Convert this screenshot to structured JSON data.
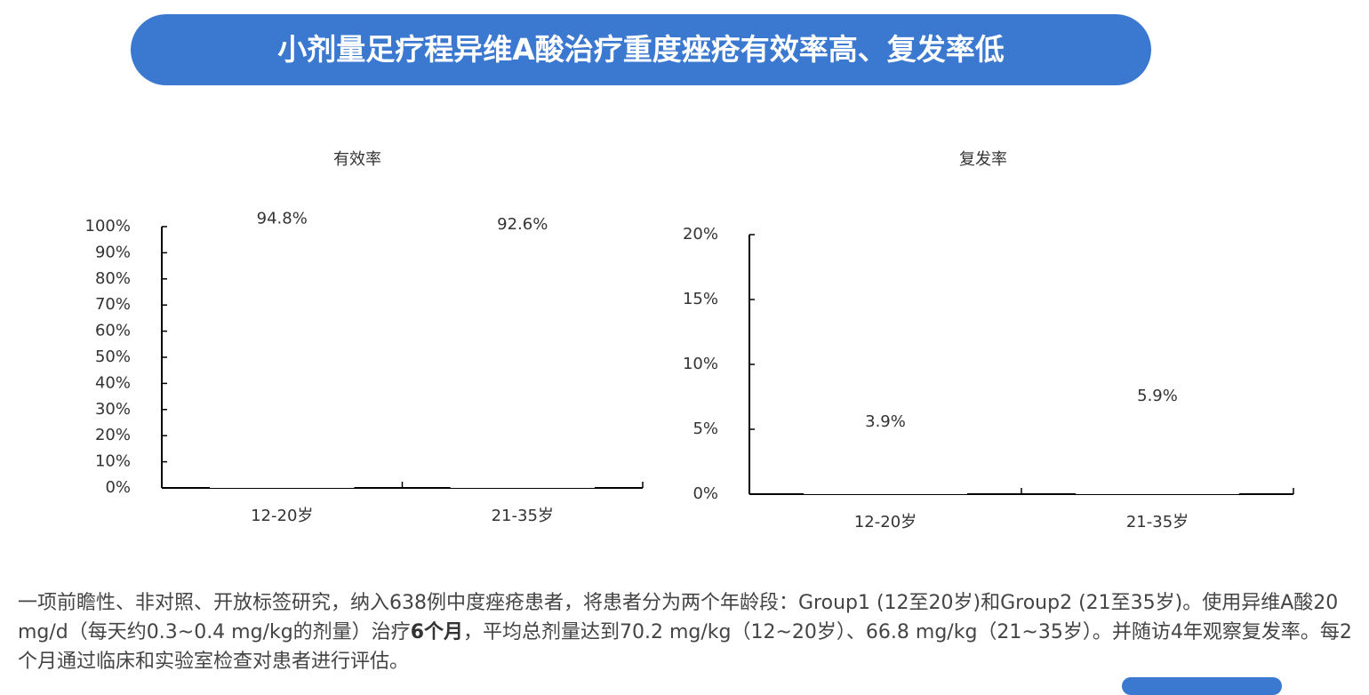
{
  "header": {
    "title": "小剂量足疗程异维A酸治疗重度痤疮有效率高、复发率低"
  },
  "chart_data": [
    {
      "type": "bar",
      "title": "有效率",
      "categories": [
        "12-20岁",
        "21-35岁"
      ],
      "values": [
        94.8,
        92.6
      ],
      "value_labels": [
        "94.8%",
        "92.6%"
      ],
      "color": "#ffffff",
      "ylim": [
        0,
        100
      ],
      "yticks": [
        {
          "value": 0,
          "label": "0%"
        },
        {
          "value": 10,
          "label": "10%"
        },
        {
          "value": 20,
          "label": "20%"
        },
        {
          "value": 30,
          "label": "30%"
        },
        {
          "value": 40,
          "label": "40%"
        },
        {
          "value": 50,
          "label": "50%"
        },
        {
          "value": 60,
          "label": "60%"
        },
        {
          "value": 70,
          "label": "70%"
        },
        {
          "value": 80,
          "label": "80%"
        },
        {
          "value": 90,
          "label": "90%"
        },
        {
          "value": 100,
          "label": "100%"
        }
      ],
      "grid": false
    },
    {
      "type": "bar",
      "title": "复发率",
      "categories": [
        "12-20岁",
        "21-35岁"
      ],
      "values": [
        3.9,
        5.9
      ],
      "value_labels": [
        "3.9%",
        "5.9%"
      ],
      "color": "#ffffff",
      "ylim": [
        0,
        20
      ],
      "yticks": [
        {
          "value": 0,
          "label": "0%"
        },
        {
          "value": 5,
          "label": "5%"
        },
        {
          "value": 10,
          "label": "10%"
        },
        {
          "value": 15,
          "label": "15%"
        },
        {
          "value": 20,
          "label": "20%"
        }
      ],
      "grid": false
    }
  ],
  "description": {
    "parts": [
      "一项前瞻性、非对照、开放标签研究，纳入638例中度痤疮患者，将患者分为两个年龄段：Group1 (12至20岁)和Group2 (21至35岁)。使用异维A酸20 mg/d（每天约0.3~0.4 mg/kg的剂量）治疗",
      "6个月",
      "，平均总剂量达到70.2 mg/kg（12~20岁）、66.8 mg/kg（21~35岁）。并随访4年观察复发率。每2个月通过临床和实验室检查对患者进行评估。"
    ]
  }
}
